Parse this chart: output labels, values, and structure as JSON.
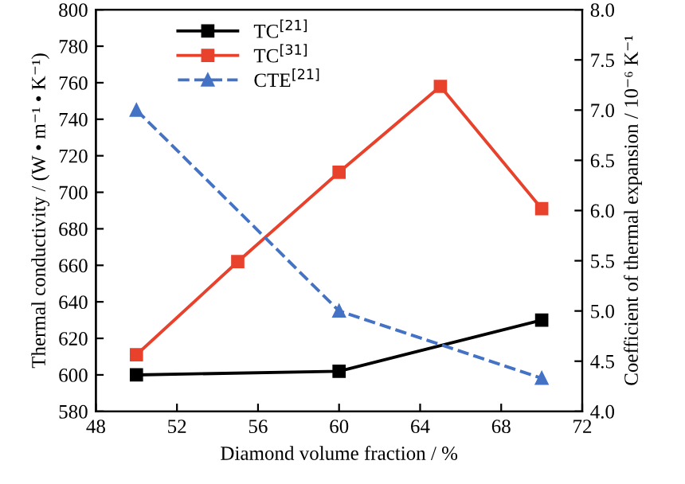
{
  "chart_data": {
    "type": "line",
    "xlabel": "Diamond volume fraction / %",
    "ylabel": "Thermal conductivity / (W • m⁻¹ • K⁻¹)",
    "y2label": "Coefficient of thermal expansion / 10⁻⁶ K⁻¹",
    "xlim": [
      48,
      72
    ],
    "xticks": [
      48,
      52,
      56,
      60,
      64,
      68,
      72
    ],
    "ylim": [
      580,
      800
    ],
    "yticks": [
      580,
      600,
      620,
      640,
      660,
      680,
      700,
      720,
      740,
      760,
      780,
      800
    ],
    "y2lim": [
      4.0,
      8.0
    ],
    "y2ticks": [
      {
        "value": 4.0,
        "label": "4.0"
      },
      {
        "value": 4.5,
        "label": "4.5"
      },
      {
        "value": 5.0,
        "label": "5.0"
      },
      {
        "value": 5.5,
        "label": "5.5"
      },
      {
        "value": 6.0,
        "label": "6.0"
      },
      {
        "value": 6.5,
        "label": "6.5"
      },
      {
        "value": 7.0,
        "label": "7.0"
      },
      {
        "value": 7.5,
        "label": "7.5"
      },
      {
        "value": 8.0,
        "label": "8.0"
      }
    ],
    "grid": false,
    "legend": "top left",
    "series": [
      {
        "name": "TC$^{[21]}$",
        "color": "#000000",
        "x": [
          50,
          60,
          70
        ],
        "values": [
          600,
          602,
          630
        ],
        "marker": "square",
        "line_style": "solid"
      },
      {
        "name": "TC$^{[31]}$",
        "color": "#e8412c",
        "x": [
          50,
          55,
          60,
          65,
          70
        ],
        "values": [
          611,
          662,
          711,
          758,
          691
        ],
        "marker": "square",
        "line_style": "solid"
      },
      {
        "name": "CTE$^{[21]}$",
        "color": "#4472c4",
        "x": [
          50,
          60,
          70
        ],
        "values": [
          7.0,
          5.0,
          4.33
        ],
        "marker": "triangle",
        "line_style": "dashed",
        "axis": "y2"
      }
    ]
  }
}
